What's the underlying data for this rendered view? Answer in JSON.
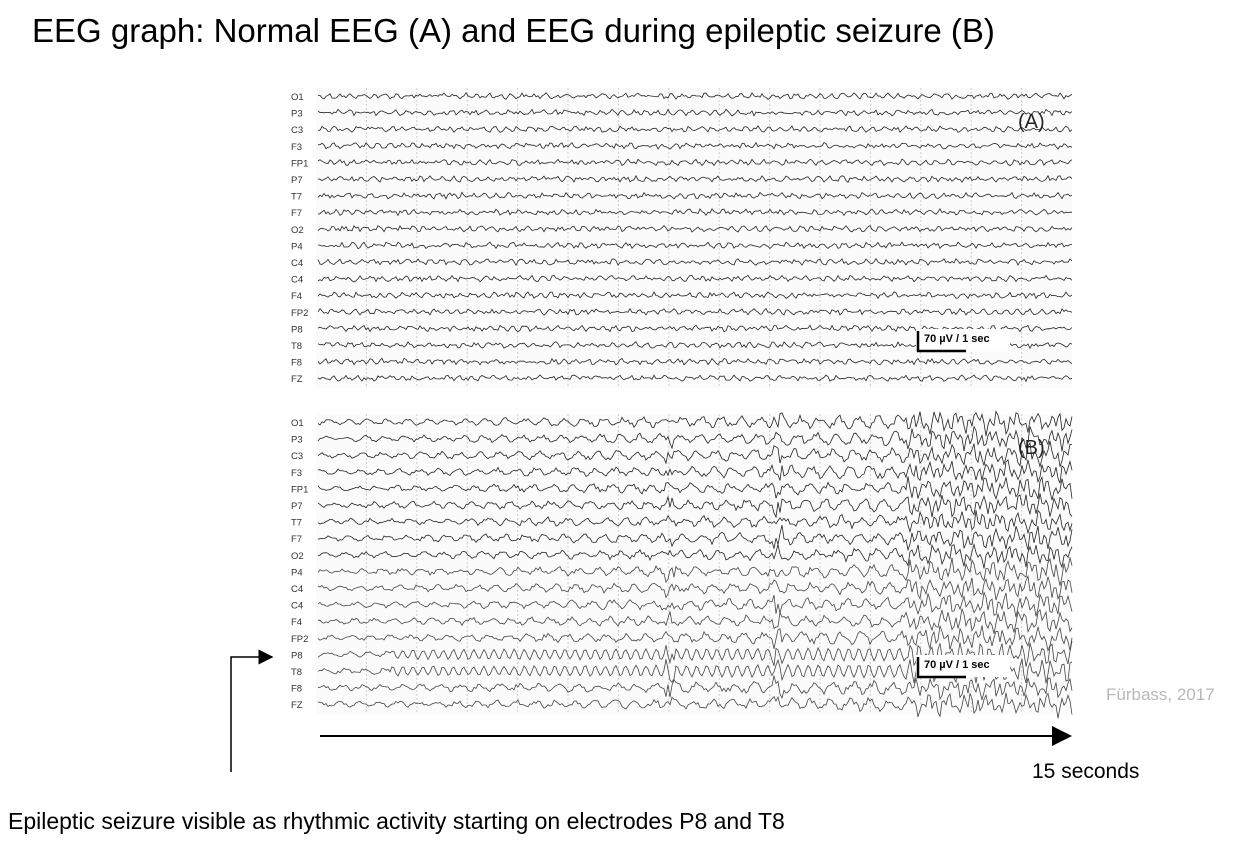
{
  "title": "EEG graph: Normal EEG (A) and EEG during epileptic seizure (B)",
  "caption": "Epileptic seizure visible as rhythmic activity starting on electrodes P8 and T8",
  "credit": "Fürbass, 2017",
  "duration_label": "15 seconds",
  "chart_data": [
    {
      "type": "line",
      "panel_label": "(A)",
      "description": "Normal EEG",
      "channels": [
        "O1",
        "P3",
        "C3",
        "F3",
        "FP1",
        "P7",
        "T7",
        "F7",
        "O2",
        "P4",
        "C4",
        "C4",
        "F4",
        "FP2",
        "P8",
        "T8",
        "F8",
        "FZ"
      ],
      "scale_label": "70 µV / 1 sec",
      "x_range_seconds": [
        0,
        15
      ],
      "grid": true
    },
    {
      "type": "line",
      "panel_label": "(B)",
      "description": "EEG during epileptic seizure",
      "channels": [
        "O1",
        "P3",
        "C3",
        "F3",
        "FP1",
        "P7",
        "T7",
        "F7",
        "O2",
        "P4",
        "C4",
        "C4",
        "F4",
        "FP2",
        "P8",
        "T8",
        "F8",
        "FZ"
      ],
      "scale_label": "70 µV / 1 sec",
      "x_range_seconds": [
        0,
        15
      ],
      "grid": true,
      "seizure_onset_channels": [
        "P8",
        "T8"
      ]
    }
  ]
}
